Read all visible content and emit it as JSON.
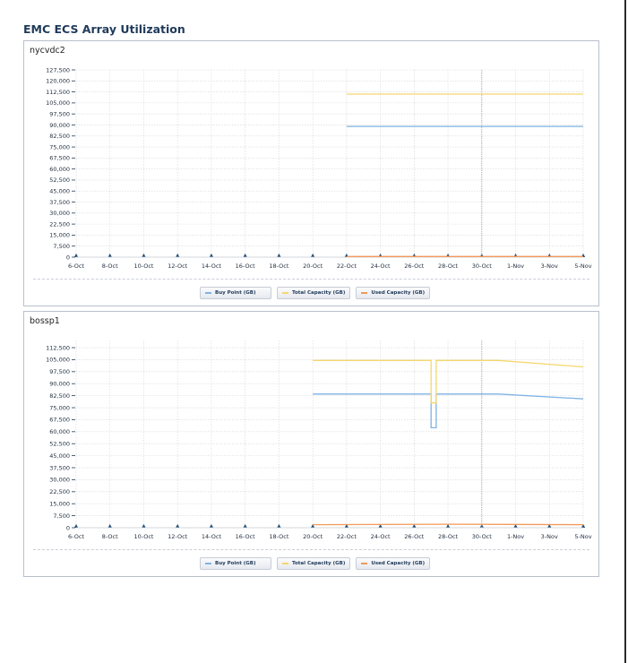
{
  "page": {
    "title": "EMC ECS Array Utilization"
  },
  "colors": {
    "buy_point": "#7fb2e5",
    "total_capacity": "#f5d76e",
    "used_capacity": "#f2995a",
    "grid": "#d6d6d6",
    "axis": "#1f3a5a",
    "marker": "#1f4e79"
  },
  "legend": [
    {
      "label": "Buy Point (GB)",
      "color_key": "buy_point"
    },
    {
      "label": "Total Capacity (GB)",
      "color_key": "total_capacity"
    },
    {
      "label": "Used Capacity (GB)",
      "color_key": "used_capacity"
    }
  ],
  "chart_data": [
    {
      "type": "line",
      "title": "nycvdc2",
      "x_tick_labels": [
        "6-Oct",
        "8-Oct",
        "10-Oct",
        "12-Oct",
        "14-Oct",
        "16-Oct",
        "18-Oct",
        "20-Oct",
        "22-Oct",
        "24-Oct",
        "26-Oct",
        "28-Oct",
        "30-Oct",
        "1-Nov",
        "3-Nov",
        "5-Nov"
      ],
      "x_range": [
        "6-Oct",
        "5-Nov"
      ],
      "reference_line_x": "30-Oct",
      "y_ticks": [
        0,
        7500,
        15000,
        22500,
        30000,
        37500,
        45000,
        52500,
        60000,
        67500,
        75000,
        82500,
        90000,
        97500,
        105000,
        112500,
        120000,
        127500
      ],
      "y_tick_labels": [
        "0",
        "7,500",
        "15,000",
        "22,500",
        "30,000",
        "37,500",
        "45,000",
        "52,500",
        "60,000",
        "67,500",
        "75,000",
        "82,500",
        "90,000",
        "97,500",
        "105,000",
        "112,500",
        "120,000",
        "127,500"
      ],
      "ylim": [
        0,
        127500
      ],
      "grid": true,
      "legend_position": "bottom",
      "series": [
        {
          "name": "Buy Point (GB)",
          "color_key": "buy_point",
          "points": [
            [
              "22-Oct",
              89000
            ],
            [
              "5-Nov",
              89000
            ]
          ]
        },
        {
          "name": "Total Capacity (GB)",
          "color_key": "total_capacity",
          "points": [
            [
              "22-Oct",
              111000
            ],
            [
              "5-Nov",
              111000
            ]
          ]
        },
        {
          "name": "Used Capacity (GB)",
          "color_key": "used_capacity",
          "points": [
            [
              "22-Oct",
              400
            ],
            [
              "5-Nov",
              400
            ]
          ]
        }
      ]
    },
    {
      "type": "line",
      "title": "bossp1",
      "x_tick_labels": [
        "6-Oct",
        "8-Oct",
        "10-Oct",
        "12-Oct",
        "14-Oct",
        "16-Oct",
        "18-Oct",
        "20-Oct",
        "22-Oct",
        "24-Oct",
        "26-Oct",
        "28-Oct",
        "30-Oct",
        "1-Nov",
        "3-Nov",
        "5-Nov"
      ],
      "x_range": [
        "6-Oct",
        "5-Nov"
      ],
      "reference_line_x": "30-Oct",
      "y_ticks": [
        0,
        7500,
        15000,
        22500,
        30000,
        37500,
        45000,
        52500,
        60000,
        67500,
        75000,
        82500,
        90000,
        97500,
        105000,
        112500
      ],
      "y_tick_labels": [
        "0",
        "7,500",
        "15,000",
        "22,500",
        "30,000",
        "37,500",
        "45,000",
        "52,500",
        "60,000",
        "67,500",
        "75,000",
        "82,500",
        "90,000",
        "97,500",
        "105,000",
        "112,500"
      ],
      "ylim": [
        0,
        117000
      ],
      "grid": true,
      "legend_position": "bottom",
      "series": [
        {
          "name": "Buy Point (GB)",
          "color_key": "buy_point",
          "points": [
            [
              "20-Oct",
              83500
            ],
            [
              "27-Oct",
              83500
            ],
            [
              "27-Oct",
              62500
            ],
            [
              "27.3-Oct",
              62500
            ],
            [
              "27.3-Oct",
              83500
            ],
            [
              "31-Oct",
              83500
            ],
            [
              "5-Nov",
              80500
            ]
          ]
        },
        {
          "name": "Total Capacity (GB)",
          "color_key": "total_capacity",
          "points": [
            [
              "20-Oct",
              104500
            ],
            [
              "27-Oct",
              104500
            ],
            [
              "27-Oct",
              78000
            ],
            [
              "27.3-Oct",
              78000
            ],
            [
              "27.3-Oct",
              104500
            ],
            [
              "31-Oct",
              104500
            ],
            [
              "5-Nov",
              100500
            ]
          ]
        },
        {
          "name": "Used Capacity (GB)",
          "color_key": "used_capacity",
          "points": [
            [
              "20-Oct",
              1900
            ],
            [
              "28-Oct",
              2200
            ],
            [
              "5-Nov",
              1900
            ]
          ]
        }
      ]
    }
  ]
}
